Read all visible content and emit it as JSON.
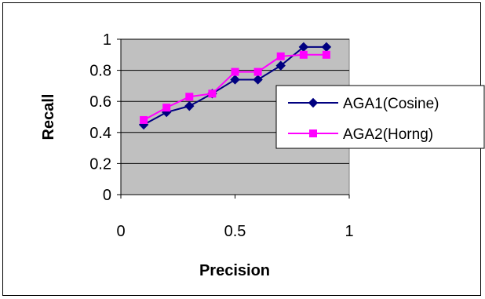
{
  "chart_data": {
    "type": "line",
    "title": "",
    "xlabel": "Precision",
    "ylabel": "Recall",
    "xlim": [
      0,
      1
    ],
    "ylim": [
      0,
      1
    ],
    "x_ticks": [
      0,
      0.5,
      1
    ],
    "x_tick_labels": [
      "0",
      "0.5",
      "1"
    ],
    "y_ticks": [
      0,
      0.2,
      0.4,
      0.6,
      0.8,
      1
    ],
    "y_tick_labels": [
      "0",
      "0.2",
      "0.4",
      "0.6",
      "0.8",
      "1"
    ],
    "grid": "horizontal",
    "plot_background": "#c0c0c0",
    "legend_position": "right",
    "series": [
      {
        "name": "AGA1(Cosine)",
        "color": "#000080",
        "marker": "diamond",
        "x": [
          0.1,
          0.2,
          0.3,
          0.4,
          0.5,
          0.6,
          0.7,
          0.8,
          0.9
        ],
        "y": [
          0.45,
          0.53,
          0.57,
          0.65,
          0.74,
          0.74,
          0.83,
          0.95,
          0.95
        ]
      },
      {
        "name": "AGA2(Horng)",
        "color": "#ff00ff",
        "marker": "square",
        "x": [
          0.1,
          0.2,
          0.3,
          0.4,
          0.5,
          0.6,
          0.7,
          0.8,
          0.9
        ],
        "y": [
          0.48,
          0.56,
          0.63,
          0.65,
          0.79,
          0.79,
          0.89,
          0.9,
          0.9
        ]
      }
    ]
  }
}
